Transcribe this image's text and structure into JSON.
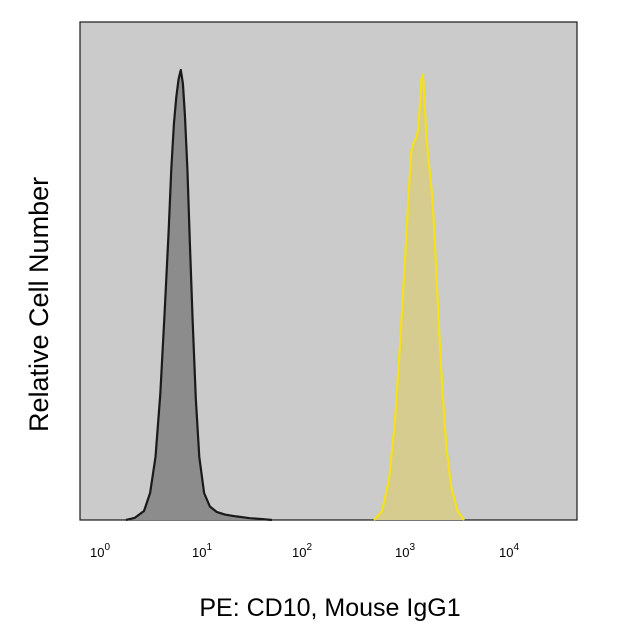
{
  "chart_data": {
    "type": "area",
    "title": "",
    "xlabel": "PE: CD10, Mouse IgG1",
    "ylabel": "Relative Cell Number",
    "xscale": "log",
    "xlim": [
      1,
      10000
    ],
    "ylim": [
      0,
      1
    ],
    "x_ticks": [
      {
        "base": "10",
        "exp": "0"
      },
      {
        "base": "10",
        "exp": "1"
      },
      {
        "base": "10",
        "exp": "2"
      },
      {
        "base": "10",
        "exp": "3"
      },
      {
        "base": "10",
        "exp": "4"
      }
    ],
    "grid": false,
    "background_color": "#cbcbcb",
    "series": [
      {
        "color": "#1a1a1a",
        "fill": "#8c8c8c",
        "x": [
          1.8,
          2.2,
          2.7,
          3.1,
          3.5,
          3.9,
          4.3,
          4.7,
          5.0,
          5.3,
          5.6,
          5.9,
          6.2,
          6.5,
          6.8,
          7.2,
          7.6,
          8.1,
          8.7,
          9.4,
          10.5,
          12.0,
          14.0,
          17.0,
          22.0,
          30.0,
          40.0,
          50.0
        ],
        "y": [
          0.0,
          0.005,
          0.02,
          0.06,
          0.14,
          0.28,
          0.46,
          0.64,
          0.78,
          0.88,
          0.94,
          0.98,
          1.0,
          0.97,
          0.9,
          0.78,
          0.62,
          0.44,
          0.27,
          0.14,
          0.06,
          0.03,
          0.018,
          0.012,
          0.008,
          0.004,
          0.002,
          0.0
        ]
      },
      {
        "color": "#f5e11a",
        "fill": "#d6cc90",
        "x": [
          500,
          600,
          700,
          800,
          900,
          1000,
          1080,
          1150,
          1220,
          1290,
          1340,
          1390,
          1440,
          1490,
          1540,
          1600,
          1680,
          1760,
          1850,
          1950,
          2050,
          2150,
          2300,
          2500,
          2800,
          3200,
          3700
        ],
        "y": [
          0.0,
          0.02,
          0.09,
          0.22,
          0.4,
          0.58,
          0.72,
          0.82,
          0.84,
          0.85,
          0.87,
          0.92,
          0.98,
          0.99,
          0.93,
          0.86,
          0.8,
          0.76,
          0.7,
          0.6,
          0.5,
          0.4,
          0.28,
          0.16,
          0.07,
          0.02,
          0.0
        ]
      }
    ]
  }
}
